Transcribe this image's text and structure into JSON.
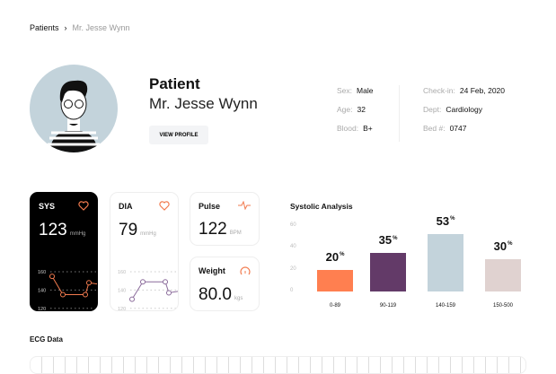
{
  "breadcrumb": {
    "parent": "Patients",
    "separator": "›",
    "current": "Mr. Jesse Wynn"
  },
  "patient": {
    "heading": "Patient",
    "name": "Mr. Jesse Wynn",
    "view_profile": "VIEW PROFILE"
  },
  "info": [
    {
      "label": "Sex:",
      "value": "Male"
    },
    {
      "label": "Age:",
      "value": "32"
    },
    {
      "label": "Blood:",
      "value": "B+"
    },
    {
      "label": "Check-in:",
      "value": "24 Feb, 2020"
    },
    {
      "label": "Dept:",
      "value": "Cardiology"
    },
    {
      "label": "Bed #:",
      "value": "0747"
    }
  ],
  "vitals": {
    "sys": {
      "title": "SYS",
      "value": "123",
      "unit": "mmHg",
      "ticks": [
        "160",
        "140",
        "120"
      ],
      "series": [
        155,
        135,
        135,
        148,
        146
      ]
    },
    "dia": {
      "title": "DIA",
      "value": "79",
      "unit": "mmHg",
      "ticks": [
        "160",
        "140",
        "120"
      ],
      "series": [
        130,
        149,
        149,
        137,
        139
      ]
    },
    "pulse": {
      "title": "Pulse",
      "value": "122",
      "unit": "BPM"
    },
    "weight": {
      "title": "Weight",
      "value": "80.0",
      "unit": "kgs"
    }
  },
  "colors": {
    "accent": "#f27b4f",
    "purple": "#8a6a9a",
    "bar1": "#ff7f50",
    "bar2": "#633a68",
    "bar3": "#c3d3db",
    "bar4": "#e0d2d0"
  },
  "chart_data": {
    "type": "bar",
    "title": "Systolic Analysis",
    "categories": [
      "0-89",
      "90-119",
      "140-159",
      "150-500"
    ],
    "values": [
      20,
      35,
      53,
      30
    ],
    "labels": [
      "20",
      "35",
      "53",
      "30"
    ],
    "unit": "%",
    "yticks": [
      "60",
      "40",
      "20",
      "0"
    ],
    "ylim": [
      0,
      60
    ]
  },
  "ecg": {
    "title": "ECG Data"
  }
}
